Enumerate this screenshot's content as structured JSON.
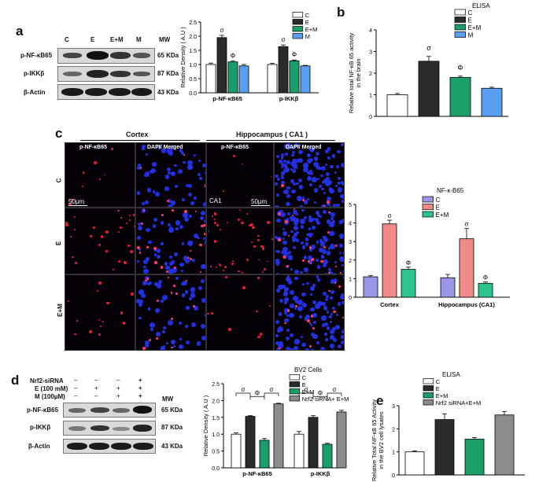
{
  "panels": {
    "a": "a",
    "b": "b",
    "c": "c",
    "d": "d",
    "e": "e"
  },
  "panel_a_blot": {
    "lanes": [
      "C",
      "E",
      "E+M",
      "M"
    ],
    "mw_header": "MW",
    "rows": [
      {
        "label": "p-NF-κB65",
        "mw": "65 KDa"
      },
      {
        "label": "p-IKKβ",
        "mw": "87 KDa"
      },
      {
        "label": "β-Actin",
        "mw": "43 KDa"
      }
    ]
  },
  "panel_d_blot": {
    "treatments": [
      {
        "label": "Nrf2-siRNA",
        "signs": [
          "–",
          "–",
          "–",
          "+"
        ]
      },
      {
        "label": "E (100 mM)",
        "signs": [
          "–",
          "+",
          "+",
          "+"
        ]
      },
      {
        "label": "M (100µM)",
        "signs": [
          "–",
          "–",
          "+",
          "+"
        ]
      }
    ],
    "mw_header": "MW",
    "rows": [
      {
        "label": "p-NF-κB65",
        "mw": "65 KDa"
      },
      {
        "label": "p-IKKβ",
        "mw": "87 KDa"
      },
      {
        "label": "β-Actin",
        "mw": "43 KDa"
      }
    ]
  },
  "panel_c_micro": {
    "region_headers": [
      "Cortex",
      "Hippocampus ( CA1 )"
    ],
    "column_headers": [
      "p-NF-κB65",
      "DAPI/ Merged",
      "p-NF-κB65",
      "DAPI/ Merged"
    ],
    "row_labels": [
      "C",
      "E",
      "E+M"
    ],
    "scale_bar_label": "50μm",
    "ca1_label": "CA1"
  },
  "colors": {
    "C": "#ffffff",
    "E": "#2b2b2b",
    "E+M": "#1a9e6a",
    "M": "#5aa0f2",
    "C_c": "#9b95e8",
    "E_c": "#f08a8a",
    "EM_c": "#2bc48a",
    "nrf2": "#8c8c8c"
  },
  "chart_data": [
    {
      "id": "a",
      "type": "bar",
      "legend": [
        "C",
        "E",
        "E+M",
        "M"
      ],
      "categories": [
        "p-NF-κB65",
        "p-IKKβ"
      ],
      "ylabel": "Relative Density ( A.U )",
      "ylim": [
        0,
        2.5
      ],
      "yticks": [
        0,
        0.5,
        1.0,
        1.5,
        2.0,
        2.5
      ],
      "series": [
        {
          "name": "C",
          "values": [
            1.0,
            1.0
          ],
          "errors": [
            0.05,
            0.04
          ]
        },
        {
          "name": "E",
          "values": [
            1.95,
            1.63
          ],
          "errors": [
            0.08,
            0.06
          ]
        },
        {
          "name": "E+M",
          "values": [
            1.09,
            1.13
          ],
          "errors": [
            0.03,
            0.03
          ]
        },
        {
          "name": "M",
          "values": [
            0.95,
            0.95
          ],
          "errors": [
            0.05,
            0.02
          ]
        }
      ],
      "annotations": [
        {
          "category": 0,
          "series": 1,
          "text": "σ"
        },
        {
          "category": 0,
          "series": 2,
          "text": "Φ"
        },
        {
          "category": 1,
          "series": 1,
          "text": "σ"
        },
        {
          "category": 1,
          "series": 2,
          "text": "Φ"
        }
      ]
    },
    {
      "id": "b",
      "type": "bar",
      "title": "ELISA",
      "legend": [
        "C",
        "E",
        "E+M",
        "M"
      ],
      "ylabel": "Relative total NF-κB 65 activity in the brain",
      "ylim": [
        0,
        4
      ],
      "yticks": [
        0,
        1,
        2,
        3,
        4
      ],
      "categories": [
        "C",
        "E",
        "E+M",
        "M"
      ],
      "values": [
        1.0,
        2.55,
        1.8,
        1.3
      ],
      "errors": [
        0.06,
        0.22,
        0.06,
        0.05
      ],
      "annotations": [
        {
          "index": 1,
          "text": "σ"
        },
        {
          "index": 2,
          "text": "Φ"
        }
      ]
    },
    {
      "id": "c",
      "type": "bar",
      "title": "NF-κ-B65",
      "legend": [
        "C",
        "E",
        "E+M"
      ],
      "categories": [
        "Cortex",
        "Hippocampus (CA1)"
      ],
      "ylabel": "Relative integrated density",
      "ylim": [
        0,
        5
      ],
      "yticks": [
        0,
        1,
        2,
        3,
        4,
        5
      ],
      "series": [
        {
          "name": "C",
          "values": [
            1.1,
            1.05
          ],
          "errors": [
            0.06,
            0.18
          ]
        },
        {
          "name": "E",
          "values": [
            3.95,
            3.15
          ],
          "errors": [
            0.2,
            0.55
          ]
        },
        {
          "name": "E+M",
          "values": [
            1.5,
            0.75
          ],
          "errors": [
            0.12,
            0.07
          ]
        }
      ],
      "annotations": [
        {
          "category": 0,
          "series": 1,
          "text": "σ"
        },
        {
          "category": 0,
          "series": 2,
          "text": "Φ"
        },
        {
          "category": 1,
          "series": 1,
          "text": "σ"
        },
        {
          "category": 1,
          "series": 2,
          "text": "Φ"
        }
      ]
    },
    {
      "id": "d",
      "type": "bar",
      "title": "BV2 Cells",
      "legend": [
        "C",
        "E",
        "E+M",
        "Nrf2 siRNA+ E+M"
      ],
      "categories": [
        "p-NF-κB65",
        "p-IKKβ"
      ],
      "ylabel": "Relative Density ( A.U )",
      "ylim": [
        0,
        2.5
      ],
      "yticks": [
        0,
        0.5,
        1.0,
        1.5,
        2.0,
        2.5
      ],
      "series": [
        {
          "name": "C",
          "values": [
            1.0,
            1.0
          ],
          "errors": [
            0.04,
            0.08
          ]
        },
        {
          "name": "E",
          "values": [
            1.53,
            1.5
          ],
          "errors": [
            0.02,
            0.05
          ]
        },
        {
          "name": "E+M",
          "values": [
            0.82,
            0.7
          ],
          "errors": [
            0.05,
            0.03
          ]
        },
        {
          "name": "Nrf2 siRNA+ E+M",
          "values": [
            1.9,
            1.66
          ],
          "errors": [
            0.02,
            0.05
          ]
        }
      ],
      "bracket_text": "σ",
      "annotations_between": "Φ"
    },
    {
      "id": "e",
      "type": "bar",
      "title": "ELISA",
      "legend": [
        "C",
        "E",
        "E+M",
        "Nrf2 siRNA+E+M"
      ],
      "ylabel": "Relative Total NF-κB 65 Activity in the BV2 cell lysates",
      "ylim": [
        0,
        3
      ],
      "yticks": [
        0,
        1,
        2,
        3
      ],
      "categories": [
        "C",
        "E",
        "E+M",
        "Nrf2 siRNA+E+M"
      ],
      "values": [
        1.0,
        2.4,
        1.55,
        2.6
      ],
      "errors": [
        0.04,
        0.25,
        0.07,
        0.15
      ]
    }
  ]
}
